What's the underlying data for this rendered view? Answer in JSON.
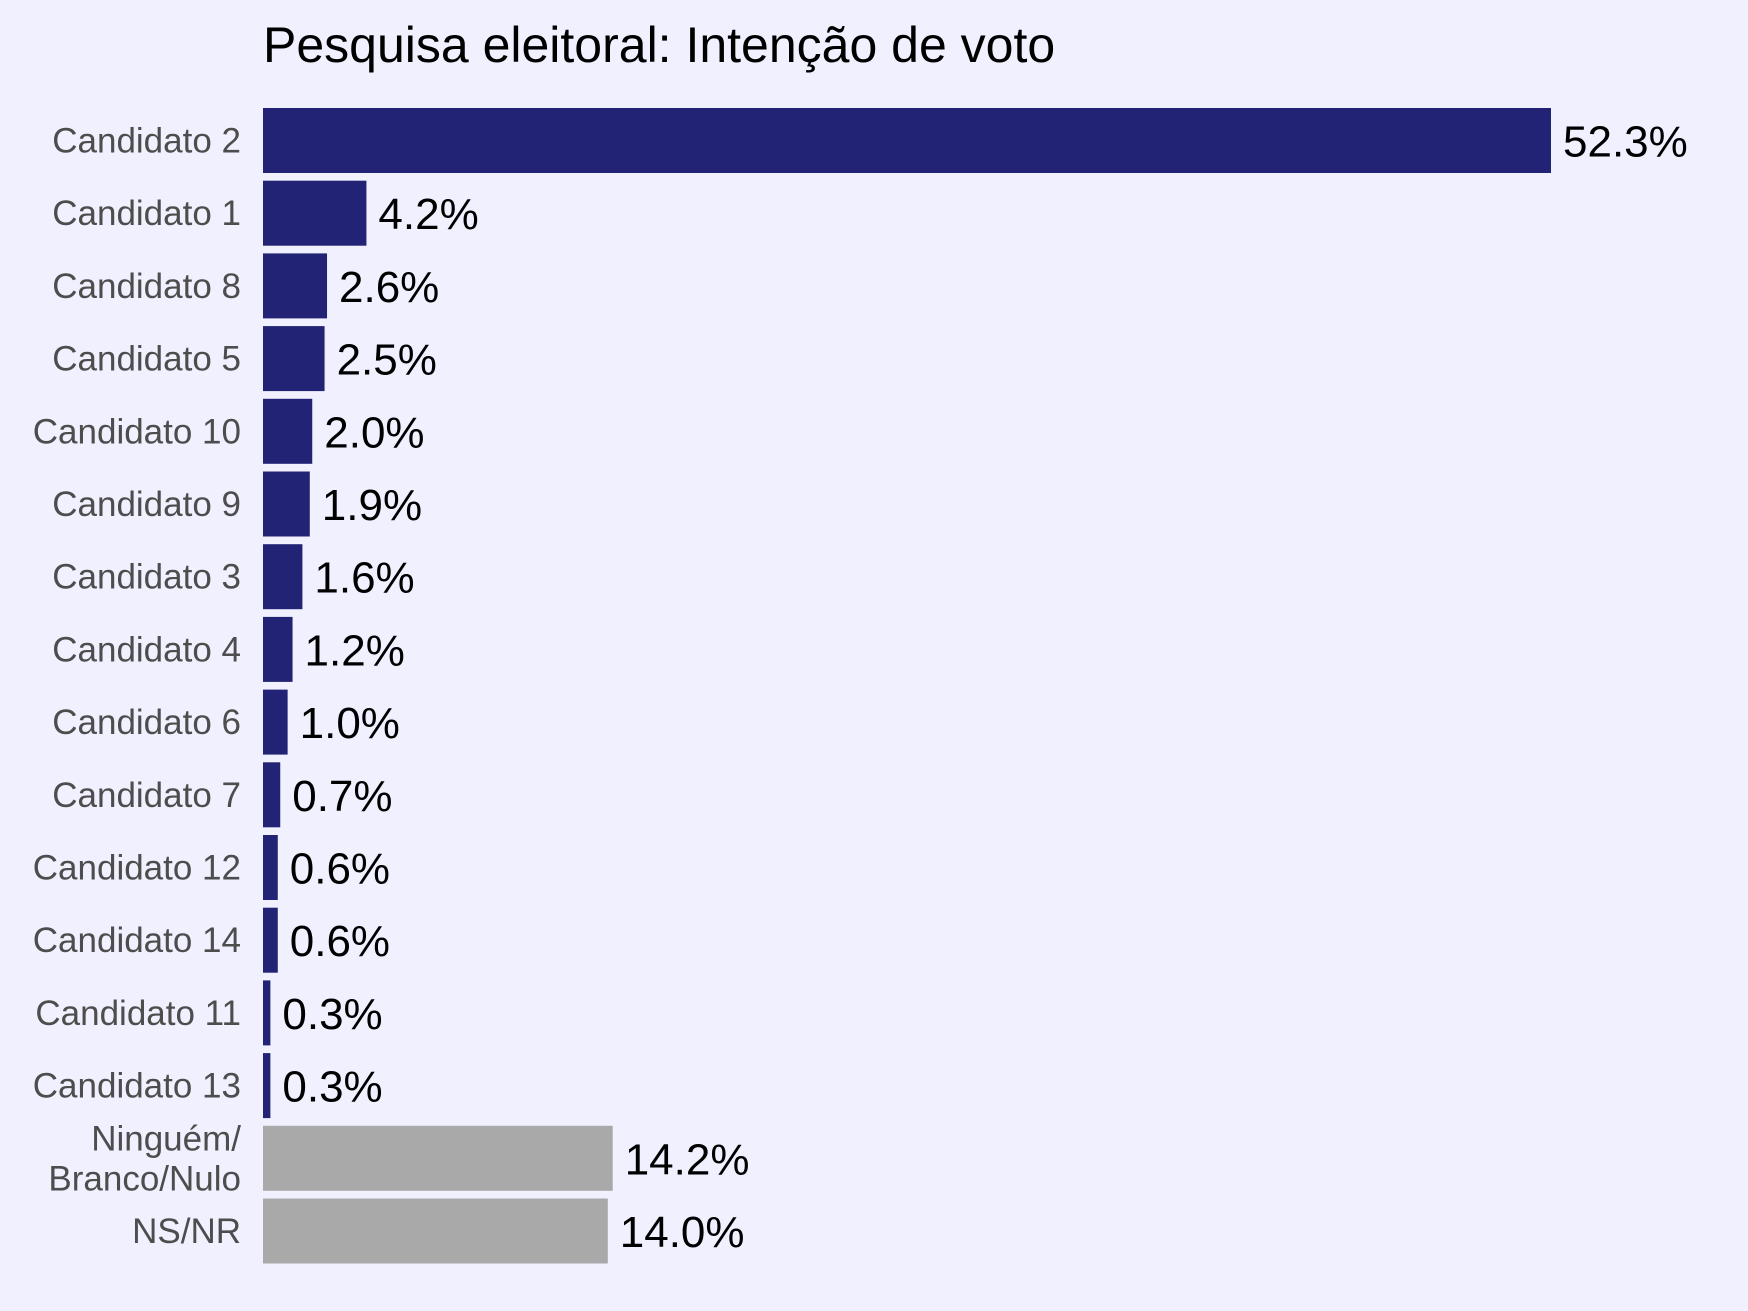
{
  "chart_data": {
    "type": "bar",
    "orientation": "horizontal",
    "title": "Pesquisa eleitoral: Intenção de voto",
    "xlabel": "",
    "ylabel": "",
    "grid": false,
    "legend": "none",
    "categories": [
      "Candidato 2",
      "Candidato 1",
      "Candidato 8",
      "Candidato 5",
      "Candidato 10",
      "Candidato 9",
      "Candidato 3",
      "Candidato 4",
      "Candidato 6",
      "Candidato 7",
      "Candidato 12",
      "Candidato 14",
      "Candidato 11",
      "Candidato 13",
      "Ninguém/\nBranco/Nulo",
      "NS/NR"
    ],
    "values": [
      52.3,
      4.2,
      2.6,
      2.5,
      2.0,
      1.9,
      1.6,
      1.2,
      1.0,
      0.7,
      0.6,
      0.6,
      0.3,
      0.3,
      14.2,
      14.0
    ],
    "value_labels": [
      "52.3%",
      "4.2%",
      "2.6%",
      "2.5%",
      "2.0%",
      "1.9%",
      "1.6%",
      "1.2%",
      "1.0%",
      "0.7%",
      "0.6%",
      "0.6%",
      "0.3%",
      "0.3%",
      "14.2%",
      "14.0%"
    ],
    "bar_colors": [
      "#232375",
      "#232375",
      "#232375",
      "#232375",
      "#232375",
      "#232375",
      "#232375",
      "#232375",
      "#232375",
      "#232375",
      "#232375",
      "#232375",
      "#232375",
      "#232375",
      "#a9a9a9",
      "#a9a9a9"
    ],
    "xlim": [
      0,
      52.3
    ]
  },
  "colors": {
    "background": "#f0f0ff",
    "candidate_bar": "#232375",
    "other_bar": "#a9a9a9",
    "category_text": "#4d4d4d",
    "value_text": "#000000"
  }
}
